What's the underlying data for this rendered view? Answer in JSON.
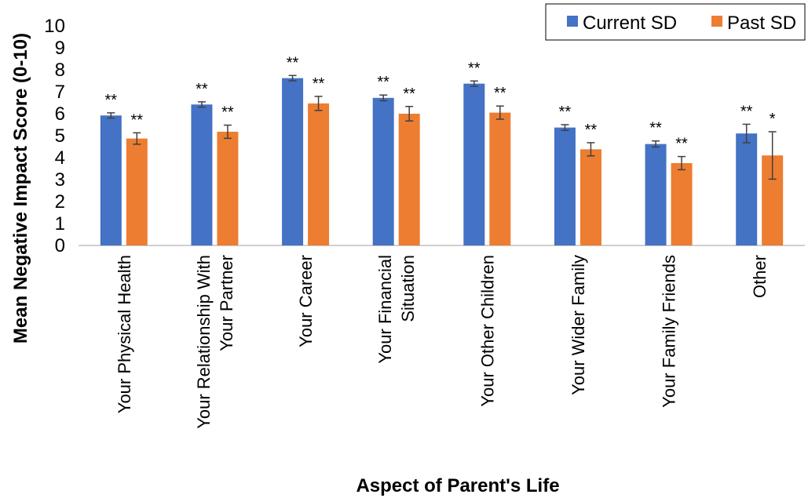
{
  "chart_data": {
    "type": "bar",
    "title": "",
    "xlabel": "Aspect of Parent's Life",
    "ylabel": "Mean Negative Impact Score (0-10)",
    "ylim": [
      0,
      10
    ],
    "yticks": [
      "0",
      "1",
      "2",
      "3",
      "4",
      "5",
      "6",
      "7",
      "8",
      "9",
      "10"
    ],
    "legend_position": "top-right",
    "categories": [
      [
        "Your Physical Health"
      ],
      [
        "Your Relationship With",
        "Your Partner"
      ],
      [
        "Your Career"
      ],
      [
        "Your Financial",
        "Situation"
      ],
      [
        "Your Other Children"
      ],
      [
        "Your Wider Family"
      ],
      [
        "Your Family Friends"
      ],
      [
        "Other"
      ]
    ],
    "series": [
      {
        "name": "Current SD",
        "color": "#4472C4",
        "values": [
          5.92,
          6.42,
          7.62,
          6.72,
          7.37,
          5.37,
          4.62,
          5.1
        ],
        "error": [
          0.12,
          0.12,
          0.12,
          0.13,
          0.12,
          0.13,
          0.14,
          0.42
        ],
        "significance": [
          "**",
          "**",
          "**",
          "**",
          "**",
          "**",
          "**",
          "**"
        ]
      },
      {
        "name": "Past SD",
        "color": "#ED7D31",
        "values": [
          4.87,
          5.18,
          6.47,
          6.0,
          6.05,
          4.38,
          3.75,
          4.1
        ],
        "error": [
          0.26,
          0.3,
          0.32,
          0.33,
          0.3,
          0.3,
          0.3,
          1.08
        ],
        "significance": [
          "**",
          "**",
          "**",
          "**",
          "**",
          "**",
          "**",
          "*"
        ]
      }
    ]
  }
}
